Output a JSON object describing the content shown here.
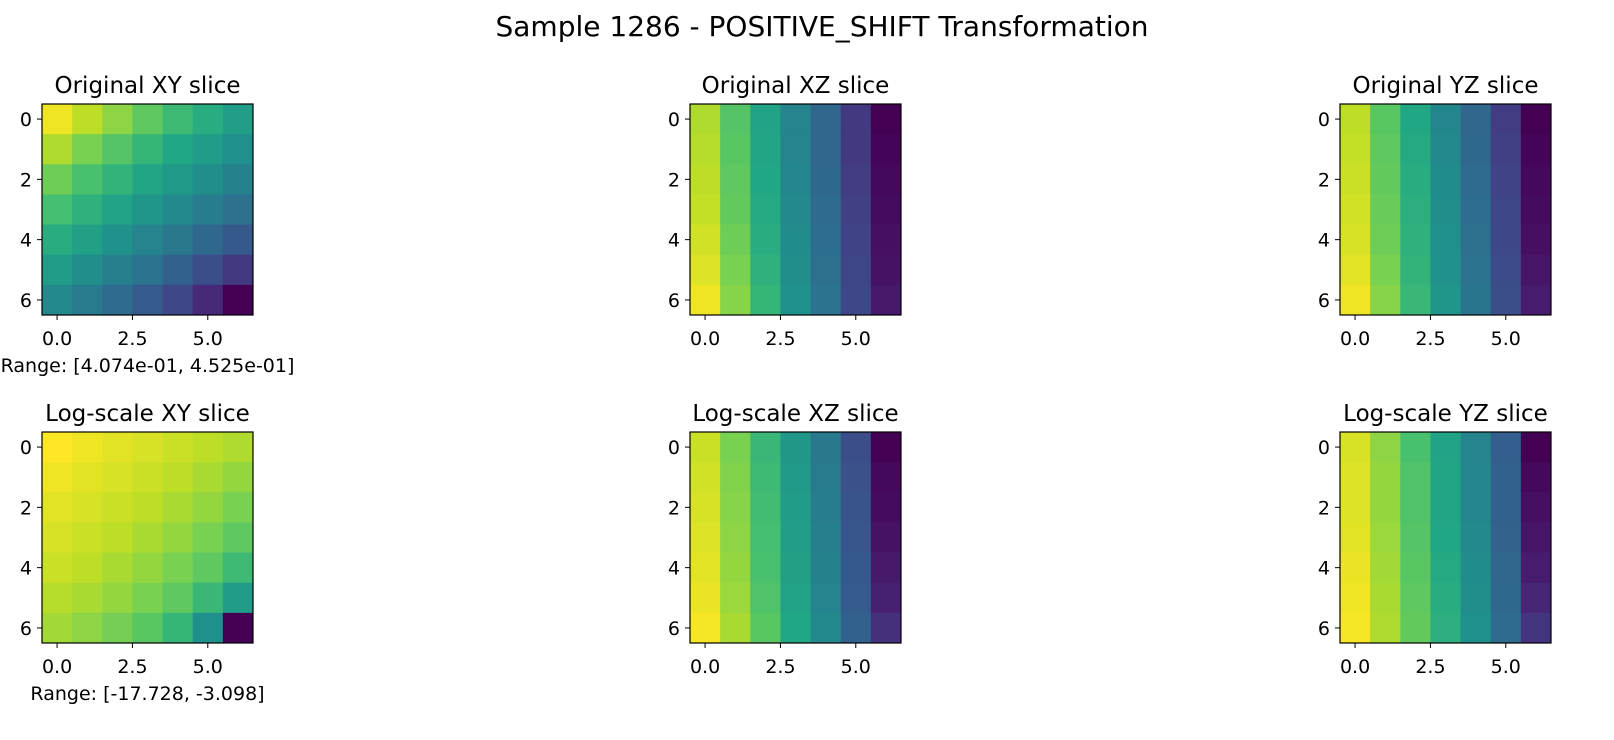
{
  "figure": {
    "title": "Sample 1286 - POSITIVE_SHIFT Transformation"
  },
  "chart_data": [
    {
      "type": "heatmap",
      "title": "Original XY slice",
      "xticks": [
        "0.0",
        "2.5",
        "5.0"
      ],
      "yticks": [
        "0",
        "2",
        "4",
        "6"
      ],
      "xlim": [
        -0.5,
        6.5
      ],
      "ylim": [
        6.5,
        -0.5
      ],
      "colormap": "viridis",
      "range_label": "Range: [4.074e-01, 4.525e-01]",
      "values": [
        [
          0.98,
          0.9,
          0.83,
          0.75,
          0.68,
          0.62,
          0.56
        ],
        [
          0.88,
          0.8,
          0.73,
          0.66,
          0.6,
          0.55,
          0.5
        ],
        [
          0.78,
          0.71,
          0.65,
          0.59,
          0.54,
          0.49,
          0.44
        ],
        [
          0.7,
          0.64,
          0.58,
          0.52,
          0.47,
          0.42,
          0.37
        ],
        [
          0.62,
          0.57,
          0.51,
          0.45,
          0.4,
          0.34,
          0.28
        ],
        [
          0.55,
          0.49,
          0.43,
          0.38,
          0.31,
          0.24,
          0.17
        ],
        [
          0.47,
          0.41,
          0.35,
          0.29,
          0.22,
          0.12,
          0.0
        ]
      ]
    },
    {
      "type": "heatmap",
      "title": "Original XZ slice",
      "xticks": [
        "0.0",
        "2.5",
        "5.0"
      ],
      "yticks": [
        "0",
        "2",
        "4",
        "6"
      ],
      "xlim": [
        -0.5,
        6.5
      ],
      "ylim": [
        6.5,
        -0.5
      ],
      "colormap": "viridis",
      "values": [
        [
          0.88,
          0.73,
          0.58,
          0.45,
          0.33,
          0.17,
          0.0
        ],
        [
          0.89,
          0.74,
          0.59,
          0.45,
          0.33,
          0.17,
          0.01
        ],
        [
          0.9,
          0.75,
          0.6,
          0.46,
          0.34,
          0.18,
          0.02
        ],
        [
          0.91,
          0.76,
          0.61,
          0.47,
          0.35,
          0.19,
          0.03
        ],
        [
          0.93,
          0.78,
          0.62,
          0.48,
          0.36,
          0.2,
          0.04
        ],
        [
          0.95,
          0.8,
          0.64,
          0.49,
          0.37,
          0.21,
          0.05
        ],
        [
          0.98,
          0.82,
          0.66,
          0.51,
          0.38,
          0.22,
          0.07
        ]
      ]
    },
    {
      "type": "heatmap",
      "title": "Original YZ slice",
      "xticks": [
        "0.0",
        "2.5",
        "5.0"
      ],
      "yticks": [
        "0",
        "2",
        "4",
        "6"
      ],
      "xlim": [
        -0.5,
        6.5
      ],
      "ylim": [
        6.5,
        -0.5
      ],
      "colormap": "viridis",
      "values": [
        [
          0.9,
          0.74,
          0.6,
          0.46,
          0.33,
          0.18,
          0.0
        ],
        [
          0.91,
          0.75,
          0.61,
          0.47,
          0.34,
          0.19,
          0.01
        ],
        [
          0.92,
          0.76,
          0.62,
          0.48,
          0.35,
          0.2,
          0.02
        ],
        [
          0.93,
          0.77,
          0.63,
          0.49,
          0.36,
          0.21,
          0.03
        ],
        [
          0.94,
          0.78,
          0.64,
          0.5,
          0.37,
          0.22,
          0.04
        ],
        [
          0.96,
          0.8,
          0.65,
          0.51,
          0.38,
          0.23,
          0.06
        ],
        [
          0.98,
          0.82,
          0.67,
          0.52,
          0.39,
          0.24,
          0.08
        ]
      ]
    },
    {
      "type": "heatmap",
      "title": "Log-scale XY slice",
      "xticks": [
        "0.0",
        "2.5",
        "5.0"
      ],
      "yticks": [
        "0",
        "2",
        "4",
        "6"
      ],
      "xlim": [
        -0.5,
        6.5
      ],
      "ylim": [
        6.5,
        -0.5
      ],
      "colormap": "viridis",
      "range_label": "Range: [-17.728, -3.098]",
      "values": [
        [
          1.0,
          0.98,
          0.96,
          0.94,
          0.92,
          0.9,
          0.88
        ],
        [
          0.98,
          0.96,
          0.94,
          0.92,
          0.9,
          0.87,
          0.84
        ],
        [
          0.96,
          0.94,
          0.92,
          0.9,
          0.87,
          0.84,
          0.8
        ],
        [
          0.94,
          0.92,
          0.9,
          0.87,
          0.84,
          0.8,
          0.75
        ],
        [
          0.92,
          0.9,
          0.87,
          0.84,
          0.8,
          0.75,
          0.68
        ],
        [
          0.89,
          0.87,
          0.84,
          0.8,
          0.75,
          0.67,
          0.55
        ],
        [
          0.86,
          0.83,
          0.79,
          0.74,
          0.66,
          0.5,
          0.0
        ]
      ]
    },
    {
      "type": "heatmap",
      "title": "Log-scale XZ slice",
      "xticks": [
        "0.0",
        "2.5",
        "5.0"
      ],
      "yticks": [
        "0",
        "2",
        "4",
        "6"
      ],
      "xlim": [
        -0.5,
        6.5
      ],
      "ylim": [
        6.5,
        -0.5
      ],
      "colormap": "viridis",
      "values": [
        [
          0.92,
          0.8,
          0.67,
          0.53,
          0.4,
          0.24,
          0.0
        ],
        [
          0.93,
          0.81,
          0.68,
          0.54,
          0.41,
          0.25,
          0.02
        ],
        [
          0.94,
          0.82,
          0.69,
          0.55,
          0.42,
          0.26,
          0.03
        ],
        [
          0.95,
          0.83,
          0.7,
          0.56,
          0.43,
          0.27,
          0.05
        ],
        [
          0.96,
          0.84,
          0.71,
          0.57,
          0.44,
          0.28,
          0.07
        ],
        [
          0.97,
          0.85,
          0.72,
          0.58,
          0.45,
          0.29,
          0.09
        ],
        [
          0.99,
          0.87,
          0.74,
          0.6,
          0.47,
          0.31,
          0.14
        ]
      ]
    },
    {
      "type": "heatmap",
      "title": "Log-scale YZ slice",
      "xticks": [
        "0.0",
        "2.5",
        "5.0"
      ],
      "yticks": [
        "0",
        "2",
        "4",
        "6"
      ],
      "xlim": [
        -0.5,
        6.5
      ],
      "ylim": [
        6.5,
        -0.5
      ],
      "colormap": "viridis",
      "values": [
        [
          0.94,
          0.83,
          0.71,
          0.58,
          0.45,
          0.3,
          0.0
        ],
        [
          0.95,
          0.84,
          0.72,
          0.59,
          0.46,
          0.31,
          0.02
        ],
        [
          0.95,
          0.84,
          0.72,
          0.59,
          0.46,
          0.31,
          0.04
        ],
        [
          0.96,
          0.85,
          0.73,
          0.6,
          0.47,
          0.32,
          0.06
        ],
        [
          0.97,
          0.86,
          0.74,
          0.61,
          0.48,
          0.33,
          0.08
        ],
        [
          0.98,
          0.87,
          0.75,
          0.62,
          0.49,
          0.34,
          0.11
        ],
        [
          0.99,
          0.88,
          0.76,
          0.63,
          0.5,
          0.35,
          0.15
        ]
      ]
    }
  ]
}
